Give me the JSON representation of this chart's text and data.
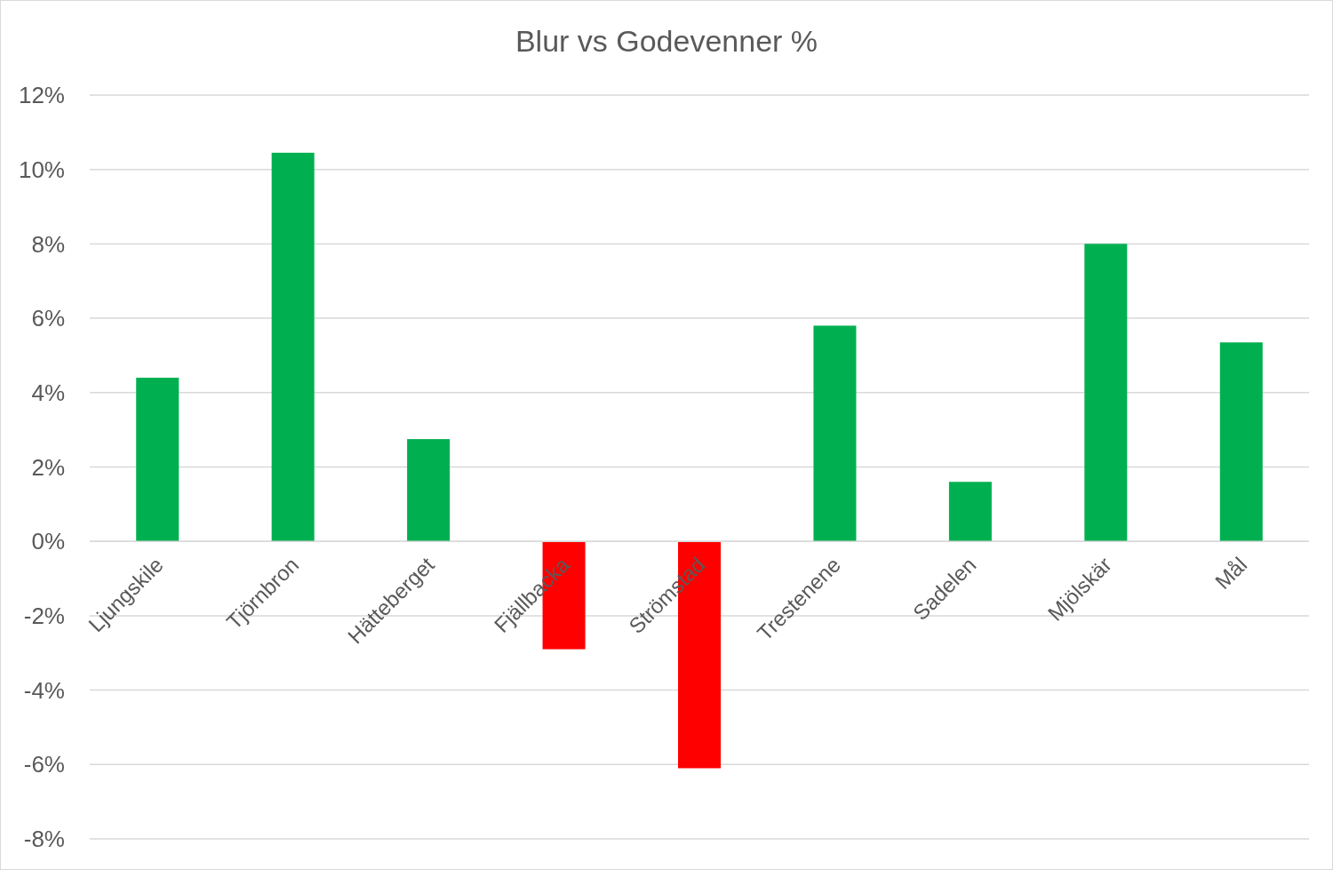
{
  "chart_data": {
    "type": "bar",
    "title": "Blur vs Godevenner %",
    "categories": [
      "Ljungskile",
      "Tjörnbron",
      "Hätteberget",
      "Fjällbacka",
      "Strömstad",
      "Trestenene",
      "Sadelen",
      "Mjölskär",
      "Mål"
    ],
    "values": [
      4.4,
      10.45,
      2.75,
      -2.9,
      -6.1,
      5.8,
      1.6,
      8.0,
      5.35
    ],
    "colors": [
      "#00b050",
      "#00b050",
      "#00b050",
      "#ff0000",
      "#ff0000",
      "#00b050",
      "#00b050",
      "#00b050",
      "#00b050"
    ],
    "ylim": [
      -8,
      12
    ],
    "yticks": [
      {
        "value": -8,
        "label": "-8%"
      },
      {
        "value": -6,
        "label": "-6%"
      },
      {
        "value": -4,
        "label": "-4%"
      },
      {
        "value": -2,
        "label": "-2%"
      },
      {
        "value": 0,
        "label": "0%"
      },
      {
        "value": 2,
        "label": "2%"
      },
      {
        "value": 4,
        "label": "4%"
      },
      {
        "value": 6,
        "label": "6%"
      },
      {
        "value": 8,
        "label": "8%"
      },
      {
        "value": 10,
        "label": "10%"
      },
      {
        "value": 12,
        "label": "12%"
      }
    ],
    "grid": "y"
  }
}
